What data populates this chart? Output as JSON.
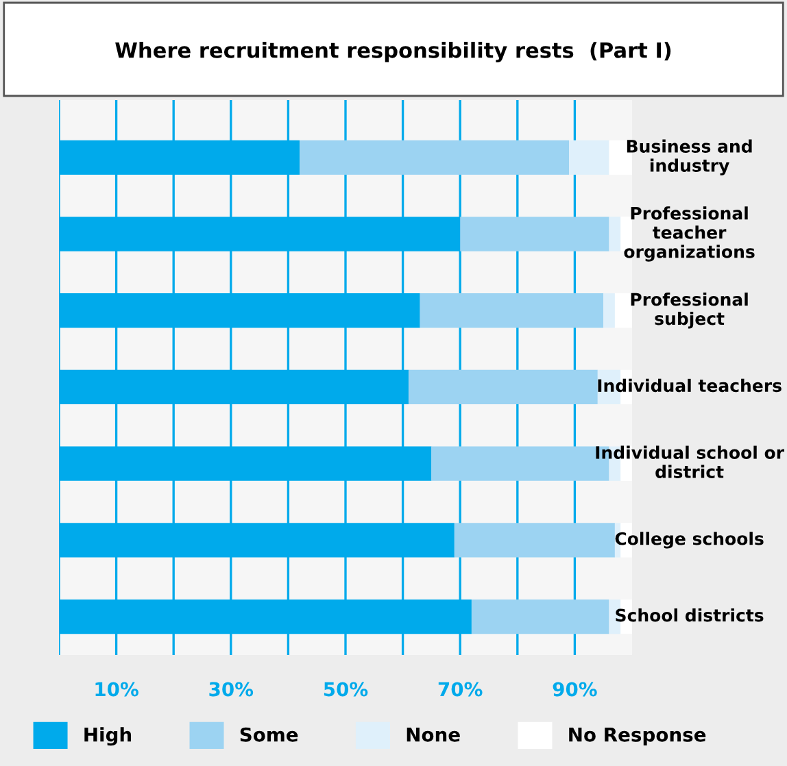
{
  "chart_data": {
    "type": "bar",
    "orientation": "horizontal",
    "stacked": true,
    "title": "Where recruitment responsibility rests  (Part I)",
    "categories": [
      "Business and industry",
      "Professional teacher organizations",
      "Professional subject",
      "Individual teachers",
      "Individual school or district",
      "College schools",
      "School districts"
    ],
    "series": [
      {
        "name": "High",
        "color": "#00aaeb",
        "values": [
          42,
          70,
          63,
          61,
          65,
          69,
          72
        ]
      },
      {
        "name": "Some",
        "color": "#9cd3f2",
        "values": [
          47,
          26,
          32,
          33,
          31,
          28,
          24
        ]
      },
      {
        "name": "None",
        "color": "#dff0fb",
        "values": [
          7,
          2,
          2,
          4,
          2,
          1,
          2
        ]
      },
      {
        "name": "No Response",
        "color": "#ffffff",
        "values": [
          4,
          2,
          3,
          2,
          2,
          2,
          2
        ]
      }
    ],
    "xlim": [
      0,
      100
    ],
    "xticks": [
      {
        "value": 0,
        "label": null
      },
      {
        "value": 10,
        "label": "10%"
      },
      {
        "value": 20,
        "label": null
      },
      {
        "value": 30,
        "label": "30%"
      },
      {
        "value": 40,
        "label": null
      },
      {
        "value": 50,
        "label": "50%"
      },
      {
        "value": 60,
        "label": null
      },
      {
        "value": 70,
        "label": "70%"
      },
      {
        "value": 80,
        "label": null
      },
      {
        "value": 90,
        "label": "90%"
      }
    ],
    "grid": "x",
    "legend": "bottom"
  }
}
